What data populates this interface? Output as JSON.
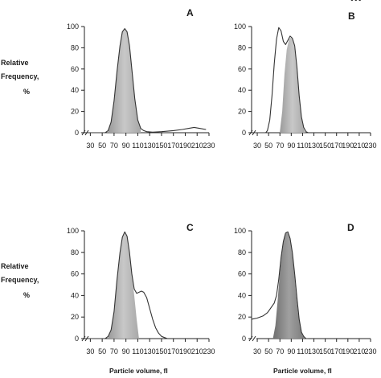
{
  "page_mark": "•••",
  "y_axis_label_lines": [
    "Relative",
    "Frequency,",
    "%"
  ],
  "x_axis_label": "Particle volume, fl",
  "chart_data": [
    {
      "type": "area",
      "panel": "A",
      "xticks": [
        "30",
        "50",
        "70",
        "90",
        "110",
        "130",
        "150",
        "170",
        "190",
        "210",
        "230"
      ],
      "yticks": [
        "0",
        "20",
        "40",
        "60",
        "80",
        "100"
      ],
      "xlim": [
        20,
        230
      ],
      "ylim": [
        0,
        100
      ],
      "series": [
        {
          "role": "outline",
          "x": [
            20,
            45,
            55,
            60,
            65,
            70,
            75,
            80,
            84,
            88,
            92,
            96,
            100,
            105,
            110,
            115,
            120,
            125,
            135,
            150,
            170,
            185,
            195,
            205,
            215,
            225
          ],
          "y": [
            0,
            0,
            0,
            2,
            10,
            30,
            58,
            82,
            95,
            98,
            95,
            82,
            60,
            32,
            12,
            4,
            2,
            1,
            0.5,
            1,
            2,
            3,
            4,
            5,
            4,
            3
          ]
        },
        {
          "role": "shaded",
          "x": [
            60,
            65,
            70,
            75,
            80,
            84,
            88,
            92,
            96,
            100,
            105,
            110,
            115
          ],
          "y": [
            2,
            10,
            30,
            58,
            82,
            95,
            98,
            95,
            82,
            60,
            32,
            12,
            4
          ]
        }
      ]
    },
    {
      "type": "area",
      "panel": "B",
      "xticks": [
        "30",
        "50",
        "70",
        "90",
        "110",
        "130",
        "150",
        "170",
        "190",
        "210",
        "230"
      ],
      "yticks": [
        "0",
        "20",
        "40",
        "60",
        "80",
        "100"
      ],
      "xlim": [
        20,
        230
      ],
      "ylim": [
        0,
        100
      ],
      "series": [
        {
          "role": "outline",
          "x": [
            20,
            45,
            48,
            52,
            56,
            60,
            64,
            68,
            72,
            76,
            80,
            84,
            88,
            92,
            96,
            100,
            104,
            108,
            112,
            116,
            120
          ],
          "y": [
            0,
            0,
            2,
            12,
            35,
            65,
            88,
            99,
            96,
            86,
            83,
            87,
            91,
            89,
            82,
            62,
            35,
            15,
            5,
            1,
            0
          ]
        },
        {
          "role": "shaded",
          "x": [
            70,
            74,
            78,
            82,
            86,
            90,
            94,
            98,
            102,
            106,
            110,
            114
          ],
          "y": [
            1,
            20,
            55,
            78,
            88,
            90,
            86,
            70,
            45,
            22,
            8,
            1
          ]
        }
      ]
    },
    {
      "type": "area",
      "panel": "C",
      "xticks": [
        "30",
        "50",
        "70",
        "90",
        "110",
        "130",
        "150",
        "170",
        "190",
        "210",
        "230"
      ],
      "yticks": [
        "0",
        "20",
        "40",
        "60",
        "80",
        "100"
      ],
      "xlim": [
        20,
        230
      ],
      "ylim": [
        0,
        100
      ],
      "series": [
        {
          "role": "outline",
          "x": [
            20,
            55,
            60,
            65,
            70,
            75,
            80,
            84,
            88,
            92,
            96,
            100,
            104,
            108,
            112,
            116,
            120,
            125,
            130,
            135,
            140,
            145,
            150,
            155,
            160
          ],
          "y": [
            0,
            0,
            2,
            8,
            25,
            55,
            80,
            94,
            99,
            95,
            80,
            60,
            46,
            42,
            43,
            44,
            43,
            38,
            28,
            18,
            10,
            5,
            2,
            1,
            0
          ]
        },
        {
          "role": "shaded",
          "x": [
            60,
            65,
            70,
            75,
            80,
            84,
            88,
            92,
            96,
            100,
            104,
            108,
            112
          ],
          "y": [
            2,
            8,
            25,
            55,
            80,
            94,
            99,
            95,
            80,
            60,
            40,
            18,
            0
          ]
        }
      ]
    },
    {
      "type": "area",
      "panel": "D",
      "xticks": [
        "30",
        "50",
        "70",
        "90",
        "110",
        "130",
        "150",
        "170",
        "190",
        "210",
        "230"
      ],
      "yticks": [
        "0",
        "20",
        "40",
        "60",
        "80",
        "100"
      ],
      "xlim": [
        20,
        230
      ],
      "ylim": [
        0,
        100
      ],
      "series": [
        {
          "role": "outline",
          "x": [
            20,
            30,
            40,
            48,
            52,
            56,
            60,
            64,
            68,
            72,
            76,
            80,
            84,
            88,
            92,
            96,
            100,
            104,
            108,
            112,
            116,
            120
          ],
          "y": [
            18,
            19,
            21,
            24,
            27,
            30,
            33,
            40,
            55,
            75,
            90,
            98,
            99,
            93,
            80,
            60,
            38,
            18,
            6,
            2,
            0,
            0
          ]
        },
        {
          "role": "shaded",
          "x": [
            58,
            62,
            66,
            70,
            74,
            78,
            82,
            86,
            90,
            94,
            98,
            102,
            106,
            110,
            114
          ],
          "y": [
            1,
            12,
            35,
            62,
            82,
            94,
            99,
            96,
            86,
            68,
            45,
            24,
            10,
            3,
            0
          ]
        }
      ]
    }
  ]
}
